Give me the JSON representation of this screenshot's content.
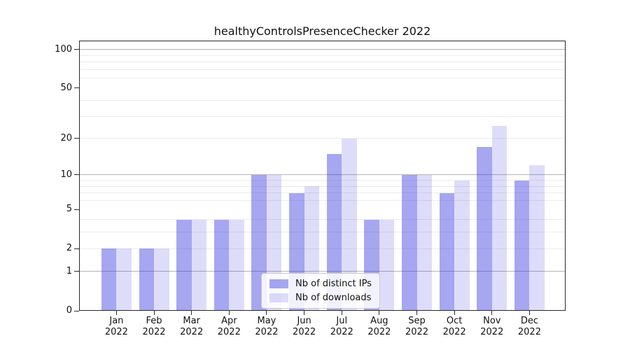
{
  "title": "healthyControlsPresenceChecker 2022",
  "chart_data": {
    "type": "bar",
    "title": "healthyControlsPresenceChecker 2022",
    "categories": [
      "Jan 2022",
      "Feb 2022",
      "Mar 2022",
      "Apr 2022",
      "May 2022",
      "Jun 2022",
      "Jul 2022",
      "Aug 2022",
      "Sep 2022",
      "Oct 2022",
      "Nov 2022",
      "Dec 2022"
    ],
    "x_tick_line1": [
      "Jan",
      "Feb",
      "Mar",
      "Apr",
      "May",
      "Jun",
      "Jul",
      "Aug",
      "Sep",
      "Oct",
      "Nov",
      "Dec"
    ],
    "x_tick_line2": "2022",
    "series": [
      {
        "name": "Nb of distinct IPs",
        "color": "rgba(42,42,222,0.42)",
        "values": [
          2,
          2,
          4,
          4,
          10,
          7,
          15,
          4,
          10,
          7,
          17,
          9
        ]
      },
      {
        "name": "Nb of downloads",
        "color": "rgba(42,42,222,0.16)",
        "values": [
          2,
          2,
          4,
          4,
          10,
          8,
          20,
          4,
          10,
          9,
          25,
          12
        ]
      }
    ],
    "xlabel": "",
    "ylabel": "",
    "yscale": "log1p",
    "ylim": [
      0,
      117
    ],
    "y_ticks": [
      0,
      1,
      2,
      5,
      10,
      20,
      50,
      100
    ],
    "y_major_gridlines": [
      1,
      10,
      100
    ],
    "y_minor_gridlines": [
      2,
      3,
      4,
      6,
      7,
      8,
      9,
      20,
      30,
      40,
      60,
      70,
      80,
      90
    ],
    "grid": true,
    "legend_position": "lower center"
  },
  "colors": {
    "bar_distinct_ips": "rgba(42,42,222,0.42)",
    "bar_downloads": "rgba(42,42,222,0.16)",
    "major_grid": "#b6b6b6",
    "minor_grid": "#ebebeb",
    "axis": "#2a2a2a",
    "text": "#111111"
  }
}
